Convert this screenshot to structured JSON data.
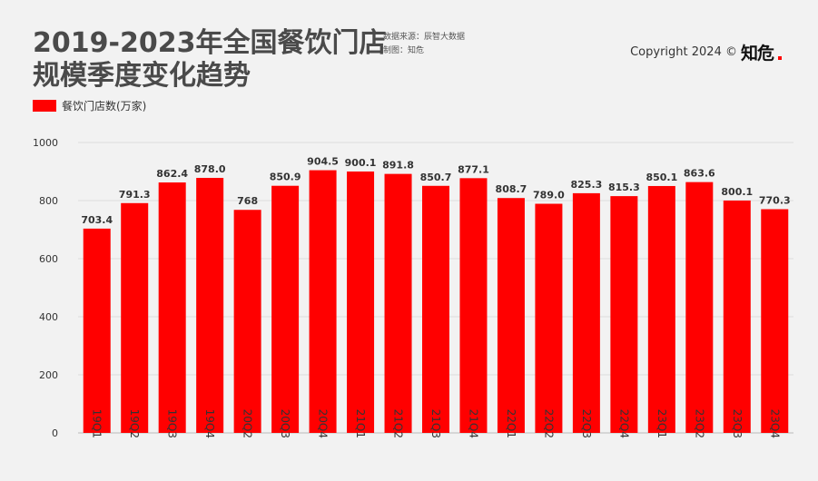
{
  "header": {
    "title_line1": "2019-2023年全国餐饮门店",
    "title_line2": "规模季度变化趋势",
    "source": "数据来源：辰智大数据",
    "made_by": "制图：知危",
    "copyright": "Copyright 2024 ©",
    "logo": "知危"
  },
  "colors": {
    "bar": "#ff0000",
    "accent": "#ff0000"
  },
  "chart_data": {
    "type": "bar",
    "categories": [
      "19Q1",
      "19Q2",
      "19Q3",
      "19Q4",
      "20Q2",
      "20Q3",
      "20Q4",
      "21Q1",
      "21Q2",
      "21Q3",
      "21Q4",
      "22Q1",
      "22Q2",
      "22Q3",
      "22Q4",
      "23Q1",
      "23Q2",
      "23Q3",
      "23Q4"
    ],
    "series": [
      {
        "name": "餐饮门店数(万家)",
        "values": [
          703.4,
          791.3,
          862.4,
          878.0,
          768,
          850.9,
          904.5,
          900.1,
          891.8,
          850.7,
          877.1,
          808.7,
          789.0,
          825.3,
          815.3,
          850.1,
          863.6,
          800.1,
          770.3
        ],
        "labels": [
          "703.4",
          "791.3",
          "862.4",
          "878.0",
          "768",
          "850.9",
          "904.5",
          "900.1",
          "891.8",
          "850.7",
          "877.1",
          "808.7",
          "789.0",
          "825.3",
          "815.3",
          "850.1",
          "863.6",
          "800.1",
          "770.3"
        ]
      }
    ],
    "yticks": [
      "0",
      "200",
      "400",
      "600",
      "800",
      "1000"
    ],
    "ylim": [
      0,
      1000
    ],
    "grid": true,
    "legend_position": "top-left"
  }
}
